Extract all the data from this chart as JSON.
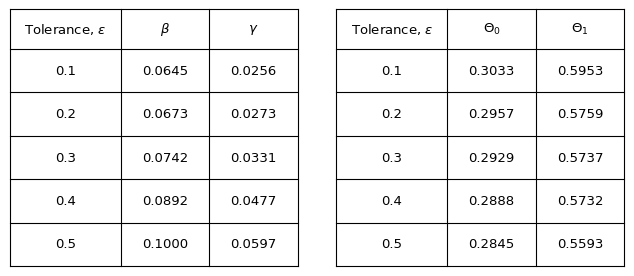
{
  "table1_headers": [
    "Tolerance, $\\epsilon$",
    "$\\beta$",
    "$\\gamma$"
  ],
  "table1_rows": [
    [
      "0.1",
      "0.0645",
      "0.0256"
    ],
    [
      "0.2",
      "0.0673",
      "0.0273"
    ],
    [
      "0.3",
      "0.0742",
      "0.0331"
    ],
    [
      "0.4",
      "0.0892",
      "0.0477"
    ],
    [
      "0.5",
      "0.1000",
      "0.0597"
    ]
  ],
  "table2_headers": [
    "Tolerance, $\\epsilon$",
    "$\\Theta_0$",
    "$\\Theta_1$"
  ],
  "table2_rows": [
    [
      "0.1",
      "0.3033",
      "0.5953"
    ],
    [
      "0.2",
      "0.2957",
      "0.5759"
    ],
    [
      "0.3",
      "0.2929",
      "0.5737"
    ],
    [
      "0.4",
      "0.2888",
      "0.5732"
    ],
    [
      "0.5",
      "0.2845",
      "0.5593"
    ]
  ],
  "background_color": "#ffffff",
  "line_color": "#000000",
  "font_size": 9.5,
  "fig_width": 6.4,
  "fig_height": 2.79
}
